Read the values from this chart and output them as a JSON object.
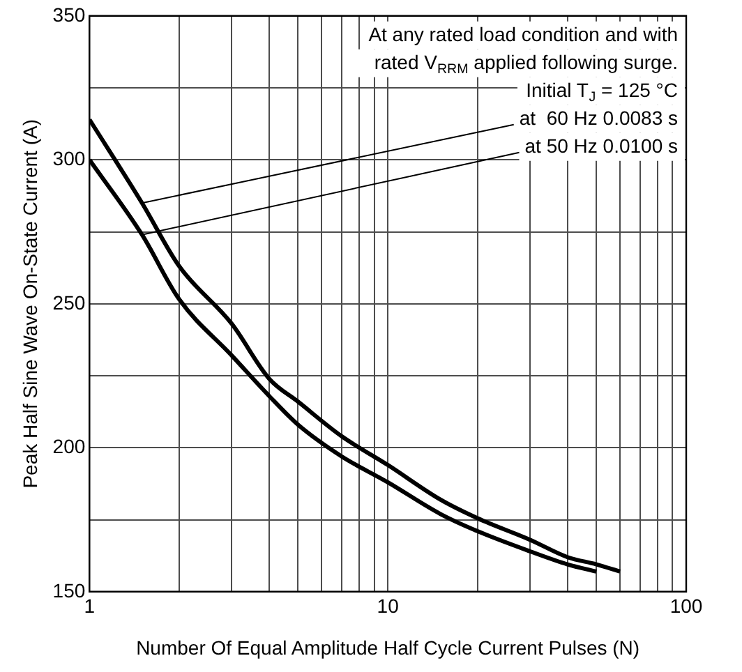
{
  "chart_data": {
    "type": "line",
    "xlabel": "Number Of Equal Amplitude Half Cycle Current Pulses (N)",
    "ylabel": "Peak Half Sine Wave On-State Current (A)",
    "series": [
      {
        "color": "#000000",
        "x": [
          1,
          1.5,
          2,
          3,
          4,
          5,
          7,
          10,
          15,
          20,
          30,
          40,
          50,
          60
        ],
        "values": [
          314,
          285,
          263,
          243,
          224,
          216,
          204,
          194,
          182,
          175.5,
          168,
          162,
          159.5,
          157
        ]
      },
      {
        "color": "#000000",
        "x": [
          1,
          1.5,
          2,
          3,
          4,
          5,
          7,
          10,
          15,
          20,
          30,
          40,
          50
        ],
        "values": [
          300,
          274,
          251.5,
          232,
          218,
          208,
          197,
          188,
          177,
          171,
          164,
          159.5,
          157
        ]
      }
    ],
    "xlim": [
      1,
      100
    ],
    "ylim": [
      150,
      350
    ],
    "log": "x",
    "grid": true,
    "marker": "none",
    "line_style": "solid",
    "xticks": [
      1,
      {
        "value": 2,
        "label": null
      },
      {
        "value": 3,
        "label": null
      },
      {
        "value": 4,
        "label": null
      },
      {
        "value": 5,
        "label": null
      },
      {
        "value": 6,
        "label": null
      },
      {
        "value": 7,
        "label": null
      },
      {
        "value": 8,
        "label": null
      },
      {
        "value": 9,
        "label": null
      },
      10,
      {
        "value": 20,
        "label": null
      },
      {
        "value": 30,
        "label": null
      },
      {
        "value": 40,
        "label": null
      },
      {
        "value": 50,
        "label": null
      },
      {
        "value": 60,
        "label": null
      },
      {
        "value": 70,
        "label": null
      },
      {
        "value": 80,
        "label": null
      },
      {
        "value": 90,
        "label": null
      },
      100
    ],
    "yticks": [
      150,
      {
        "value": 175,
        "label": null
      },
      200,
      {
        "value": 225,
        "label": null
      },
      250,
      {
        "value": 275,
        "label": null
      },
      300,
      {
        "value": 325,
        "label": null
      },
      350
    ],
    "annotations": [
      "At any rated load condition and with",
      "rated V$_{RRM}$ applied following surge.",
      "Initial T$_{J}$ = 125 °C",
      {
        "text": "at  60 Hz 0.0083 s",
        "x": 1.5,
        "y": 285
      },
      {
        "text": "at 50 Hz 0.0100 s",
        "x": 1.5,
        "y": 274
      }
    ]
  }
}
